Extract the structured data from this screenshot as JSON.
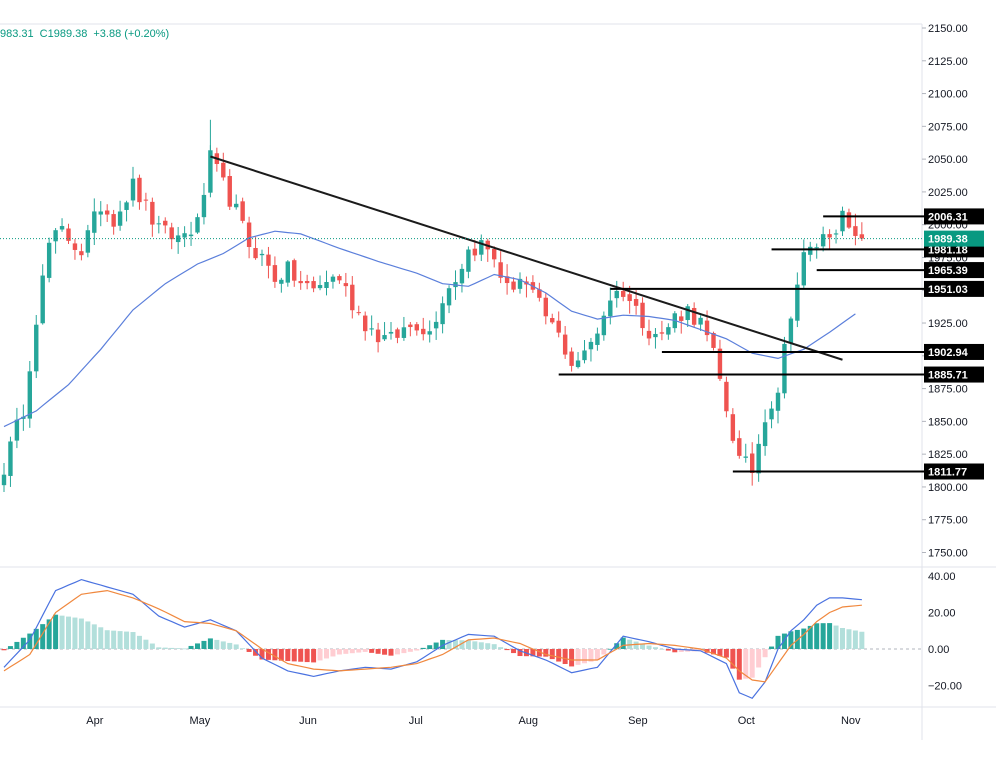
{
  "header": {
    "ohlc_close_fragment": "983.31",
    "close_label": "C1989.38",
    "change_label": "+3.88 (+0.20%)",
    "positive_color": "#089981"
  },
  "colors": {
    "up": "#26a69a",
    "down": "#ef5350",
    "up_hist_strong": "#26a69a",
    "up_hist_weak": "#b2dfdb",
    "down_hist_strong": "#ef5350",
    "down_hist_weak": "#ffcdd2",
    "ma": "#5b7fdb",
    "macd": "#4a72e0",
    "signal": "#f0883e",
    "level_line": "#000000",
    "trendline": "#1b1b1b",
    "last_price_tag": "#131722"
  },
  "chart_data": [
    {
      "type": "candlestick",
      "title": "",
      "yaxis_ticks": [
        "2150.00",
        "2125.00",
        "2100.00",
        "2075.00",
        "2050.00",
        "2025.00",
        "2000.00",
        "1975.00",
        "1950.00",
        "1925.00",
        "1900.00",
        "1875.00",
        "1850.00",
        "1825.00",
        "1800.00",
        "1775.00",
        "1750.00"
      ],
      "ylim": [
        1740,
        2150
      ],
      "xaxis_labels": [
        "Apr",
        "May",
        "Jun",
        "Jul",
        "Aug",
        "Sep",
        "Oct",
        "Nov"
      ],
      "last_price": 1989.38,
      "levels": [
        {
          "value": 2006.31,
          "label": "2006.31"
        },
        {
          "value": 1981.18,
          "label": "1981.18"
        },
        {
          "value": 1965.39,
          "label": "1965.39"
        },
        {
          "value": 1951.03,
          "label": "1951.03"
        },
        {
          "value": 1902.94,
          "label": "1902.94"
        },
        {
          "value": 1885.71,
          "label": "1885.71"
        },
        {
          "value": 1811.77,
          "label": "1811.77"
        }
      ],
      "last_price_label": "1989.38",
      "trendline": {
        "from": {
          "date_index": 32,
          "price": 2052
        },
        "to": {
          "date_index": 130,
          "price": 1897
        }
      },
      "moving_average": [
        [
          0,
          1846
        ],
        [
          5,
          1858
        ],
        [
          10,
          1878
        ],
        [
          15,
          1905
        ],
        [
          20,
          1935
        ],
        [
          25,
          1955
        ],
        [
          30,
          1970
        ],
        [
          34,
          1978
        ],
        [
          38,
          1990
        ],
        [
          42,
          1995
        ],
        [
          46,
          1993
        ],
        [
          52,
          1982
        ],
        [
          58,
          1972
        ],
        [
          64,
          1963
        ],
        [
          68,
          1955
        ],
        [
          72,
          1953
        ],
        [
          76,
          1962
        ],
        [
          80,
          1958
        ],
        [
          84,
          1948
        ],
        [
          88,
          1934
        ],
        [
          92,
          1928
        ],
        [
          96,
          1931
        ],
        [
          100,
          1930
        ],
        [
          104,
          1927
        ],
        [
          108,
          1920
        ],
        [
          112,
          1913
        ],
        [
          116,
          1902
        ],
        [
          120,
          1898
        ],
        [
          124,
          1905
        ],
        [
          128,
          1918
        ],
        [
          132,
          1932
        ]
      ],
      "anchor_closes": [
        [
          0,
          1815
        ],
        [
          3,
          1860
        ],
        [
          5,
          1930
        ],
        [
          7,
          1985
        ],
        [
          9,
          1995
        ],
        [
          12,
          1980
        ],
        [
          15,
          2015
        ],
        [
          17,
          2005
        ],
        [
          20,
          2030
        ],
        [
          24,
          1995
        ],
        [
          27,
          1990
        ],
        [
          30,
          2000
        ],
        [
          32,
          2050
        ],
        [
          34,
          2030
        ],
        [
          36,
          2010
        ],
        [
          38,
          1985
        ],
        [
          40,
          1975
        ],
        [
          42,
          1960
        ],
        [
          44,
          1965
        ],
        [
          46,
          1955
        ],
        [
          48,
          1950
        ],
        [
          50,
          1958
        ],
        [
          52,
          1960
        ],
        [
          54,
          1940
        ],
        [
          56,
          1925
        ],
        [
          58,
          1915
        ],
        [
          60,
          1912
        ],
        [
          62,
          1920
        ],
        [
          64,
          1925
        ],
        [
          66,
          1918
        ],
        [
          68,
          1945
        ],
        [
          70,
          1960
        ],
        [
          72,
          1980
        ],
        [
          74,
          1985
        ],
        [
          76,
          1975
        ],
        [
          78,
          1950
        ],
        [
          80,
          1960
        ],
        [
          82,
          1945
        ],
        [
          84,
          1930
        ],
        [
          86,
          1915
        ],
        [
          88,
          1895
        ],
        [
          90,
          1900
        ],
        [
          92,
          1920
        ],
        [
          94,
          1945
        ],
        [
          96,
          1950
        ],
        [
          98,
          1935
        ],
        [
          100,
          1920
        ],
        [
          102,
          1915
        ],
        [
          104,
          1930
        ],
        [
          106,
          1935
        ],
        [
          108,
          1925
        ],
        [
          110,
          1900
        ],
        [
          112,
          1860
        ],
        [
          114,
          1820
        ],
        [
          116,
          1813
        ],
        [
          118,
          1855
        ],
        [
          120,
          1875
        ],
        [
          122,
          1935
        ],
        [
          124,
          1975
        ],
        [
          126,
          1985
        ],
        [
          128,
          1995
        ],
        [
          130,
          2005
        ],
        [
          132,
          1986
        ],
        [
          133,
          1989
        ]
      ],
      "candle_count": 134
    },
    {
      "type": "macd",
      "yaxis_ticks": [
        "40.00",
        "20.00",
        "0.00",
        "−20.00"
      ],
      "ylim": [
        -35,
        42
      ],
      "macd_anchors": [
        [
          0,
          -10
        ],
        [
          4,
          5
        ],
        [
          8,
          32
        ],
        [
          12,
          38
        ],
        [
          16,
          34
        ],
        [
          20,
          30
        ],
        [
          24,
          18
        ],
        [
          28,
          12
        ],
        [
          32,
          16
        ],
        [
          36,
          10
        ],
        [
          40,
          -5
        ],
        [
          44,
          -12
        ],
        [
          48,
          -15
        ],
        [
          52,
          -12
        ],
        [
          56,
          -10
        ],
        [
          60,
          -11
        ],
        [
          64,
          -7
        ],
        [
          68,
          2
        ],
        [
          72,
          8
        ],
        [
          76,
          7
        ],
        [
          80,
          -1
        ],
        [
          84,
          -6
        ],
        [
          88,
          -13
        ],
        [
          92,
          -10
        ],
        [
          96,
          7
        ],
        [
          100,
          4
        ],
        [
          104,
          0
        ],
        [
          108,
          -1
        ],
        [
          112,
          -8
        ],
        [
          114,
          -24
        ],
        [
          116,
          -27
        ],
        [
          118,
          -18
        ],
        [
          120,
          0
        ],
        [
          122,
          10
        ],
        [
          124,
          16
        ],
        [
          126,
          24
        ],
        [
          128,
          28
        ],
        [
          130,
          28
        ],
        [
          133,
          27
        ]
      ],
      "signal_anchors": [
        [
          0,
          -12
        ],
        [
          4,
          -3
        ],
        [
          8,
          20
        ],
        [
          12,
          30
        ],
        [
          16,
          32
        ],
        [
          20,
          28
        ],
        [
          24,
          22
        ],
        [
          28,
          15
        ],
        [
          32,
          14
        ],
        [
          36,
          10
        ],
        [
          40,
          0
        ],
        [
          44,
          -8
        ],
        [
          48,
          -11
        ],
        [
          52,
          -12
        ],
        [
          56,
          -11
        ],
        [
          60,
          -10
        ],
        [
          64,
          -8
        ],
        [
          68,
          -3
        ],
        [
          72,
          5
        ],
        [
          76,
          6
        ],
        [
          80,
          3
        ],
        [
          84,
          -3
        ],
        [
          88,
          -6
        ],
        [
          92,
          -6
        ],
        [
          96,
          2
        ],
        [
          100,
          3
        ],
        [
          104,
          2
        ],
        [
          108,
          0
        ],
        [
          112,
          -5
        ],
        [
          114,
          -12
        ],
        [
          116,
          -17
        ],
        [
          118,
          -18
        ],
        [
          120,
          -8
        ],
        [
          122,
          2
        ],
        [
          124,
          8
        ],
        [
          126,
          15
        ],
        [
          128,
          20
        ],
        [
          130,
          23
        ],
        [
          133,
          24
        ]
      ]
    }
  ]
}
